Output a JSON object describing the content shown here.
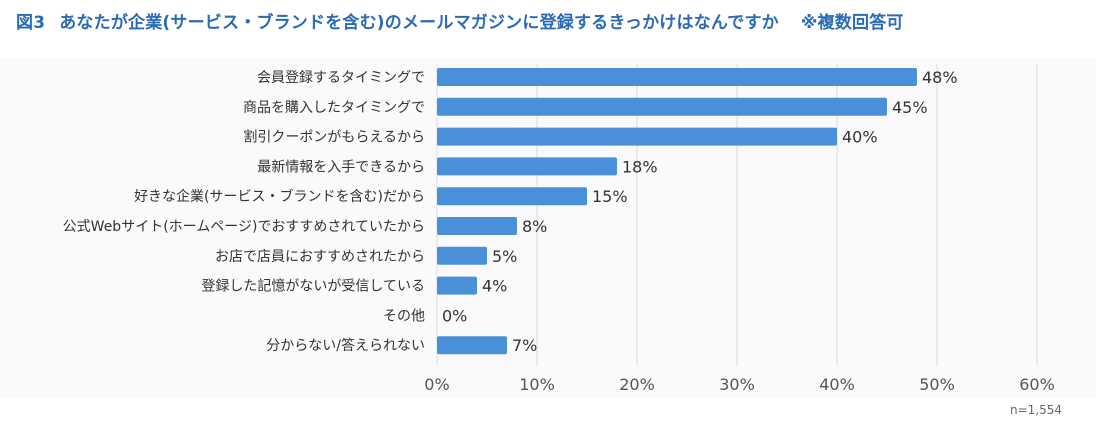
{
  "title": {
    "figure": "図3",
    "text": "あなたが企業(サービス・ブランドを含む)のメールマガジンに登録するきっかけはなんですか",
    "note": "※複数回答可"
  },
  "sample_size": "n=1,554",
  "colors": {
    "bar": "#4a90d9",
    "title": "#2a6bb6",
    "grid": "#dcdcdc"
  },
  "chart_data": {
    "type": "bar",
    "orientation": "horizontal",
    "categories": [
      "会員登録するタイミングで",
      "商品を購入したタイミングで",
      "割引クーポンがもらえるから",
      "最新情報を入手できるから",
      "好きな企業(サービス・ブランドを含む)だから",
      "公式Webサイト(ホームページ)でおすすめされていたから",
      "お店で店員におすすめされたから",
      "登録した記憶がないが受信している",
      "その他",
      "分からない/答えられない"
    ],
    "values": [
      48,
      45,
      40,
      18,
      15,
      8,
      5,
      4,
      0,
      7
    ],
    "value_labels": [
      "48%",
      "45%",
      "40%",
      "18%",
      "15%",
      "8%",
      "5%",
      "4%",
      "0%",
      "7%"
    ],
    "xlim": [
      0,
      60
    ],
    "xticks": [
      0,
      10,
      20,
      30,
      40,
      50,
      60
    ],
    "xtick_labels": [
      "0%",
      "10%",
      "20%",
      "30%",
      "40%",
      "50%",
      "60%"
    ],
    "grid": true
  }
}
